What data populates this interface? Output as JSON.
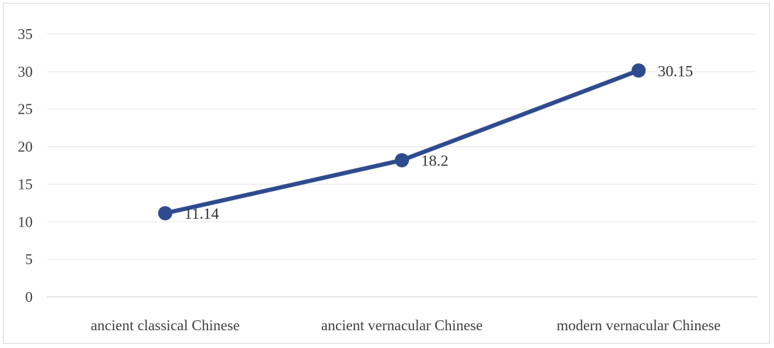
{
  "chart_data": {
    "type": "line",
    "title": "",
    "xlabel": "",
    "ylabel": "",
    "categories": [
      "ancient classical Chinese",
      "ancient vernacular Chinese",
      "modern vernacular Chinese"
    ],
    "series": [
      {
        "values": [
          11.14,
          18.2,
          30.15
        ],
        "data_labels": [
          "11.14",
          "18.2",
          "30.15"
        ],
        "color": "#2f4b8f"
      }
    ],
    "ylim": [
      0,
      35
    ],
    "yticks": [
      0,
      5,
      10,
      15,
      20,
      25,
      30,
      35
    ],
    "grid": true,
    "legend": "none"
  }
}
